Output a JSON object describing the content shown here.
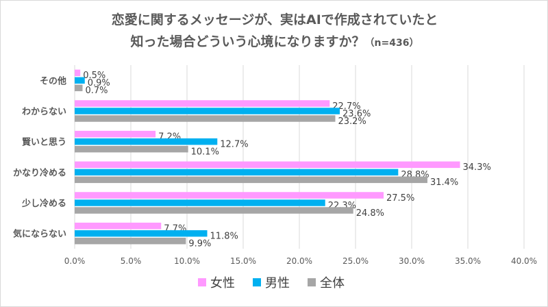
{
  "chart_data": {
    "type": "bar",
    "orientation": "horizontal",
    "title_line1": "恋愛に関するメッセージが、実はAIで作成されていたと",
    "title_line2": "知った場合どういう心境になりますか？",
    "title_note": "（n=436）",
    "categories": [
      "その他",
      "わからない",
      "賢いと思う",
      "かなり冷める",
      "少し冷める",
      "気にならない"
    ],
    "series": [
      {
        "name": "女性",
        "color": "#ff99ff",
        "values": [
          0.5,
          22.7,
          7.2,
          34.3,
          27.5,
          7.7
        ],
        "labels": [
          "0.5%",
          "22.7%",
          "7.2%",
          "34.3%",
          "27.5%",
          "7.7%"
        ]
      },
      {
        "name": "男性",
        "color": "#00b0f0",
        "values": [
          0.9,
          23.6,
          12.7,
          28.8,
          22.3,
          11.8
        ],
        "labels": [
          "0.9%",
          "23.6%",
          "12.7%",
          "28.8%",
          "22.3%",
          "11.8%"
        ]
      },
      {
        "name": "全体",
        "color": "#a6a6a6",
        "values": [
          0.7,
          23.2,
          10.1,
          31.4,
          24.8,
          9.9
        ],
        "labels": [
          "0.7%",
          "23.2%",
          "10.1%",
          "31.4%",
          "24.8%",
          "9.9%"
        ]
      }
    ],
    "xlim": [
      0,
      40
    ],
    "xticks": [
      "0.0%",
      "5.0%",
      "10.0%",
      "15.0%",
      "20.0%",
      "25.0%",
      "30.0%",
      "35.0%",
      "40.0%"
    ],
    "grid": true,
    "legend_position": "bottom"
  }
}
